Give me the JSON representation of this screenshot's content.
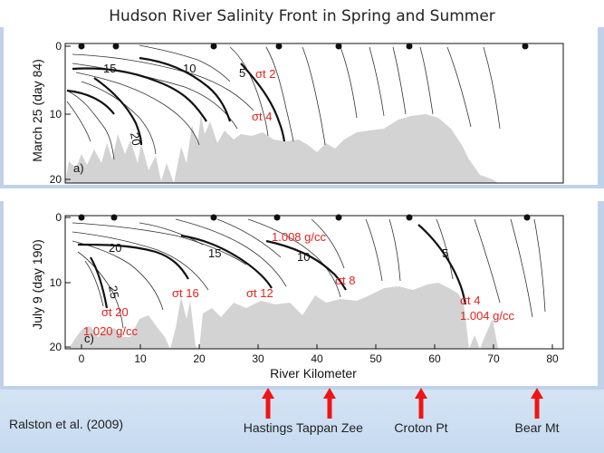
{
  "title": "Hudson River Salinity Front in Spring and Summer",
  "panel_a": {
    "ylabel": "March 25 (day 84)",
    "tag": "a)",
    "yticks": [
      "0",
      "10",
      "20"
    ],
    "contour_labels": [
      "15",
      "10",
      "5",
      "20"
    ],
    "annotations": [
      "σt 2",
      "σt 4"
    ]
  },
  "panel_c": {
    "ylabel": "July 9 (day 190)",
    "tag": "c)",
    "yticks": [
      "0",
      "10",
      "20"
    ],
    "xticks": [
      "0",
      "10",
      "20",
      "30",
      "40",
      "50",
      "60",
      "70",
      "80"
    ],
    "xlabel": "River Kilometer",
    "contour_labels": [
      "20",
      "15",
      "10",
      "5",
      "25"
    ],
    "annotations": [
      "1.008 g/cc",
      "σt 8",
      "σt 16",
      "σt 12",
      "σt 20",
      "1.020 g/cc",
      "σt 4",
      "1.004 g/cc"
    ]
  },
  "locations": [
    "Hastings",
    "Tappan Zee",
    "Croton Pt",
    "Bear Mt"
  ],
  "citation": "Ralston et al. (2009)",
  "colors": {
    "annotation": "#e8201a",
    "arrow": "#f01414",
    "bathymetry": "#d3d3d3",
    "frame": "#bfd2ea"
  }
}
